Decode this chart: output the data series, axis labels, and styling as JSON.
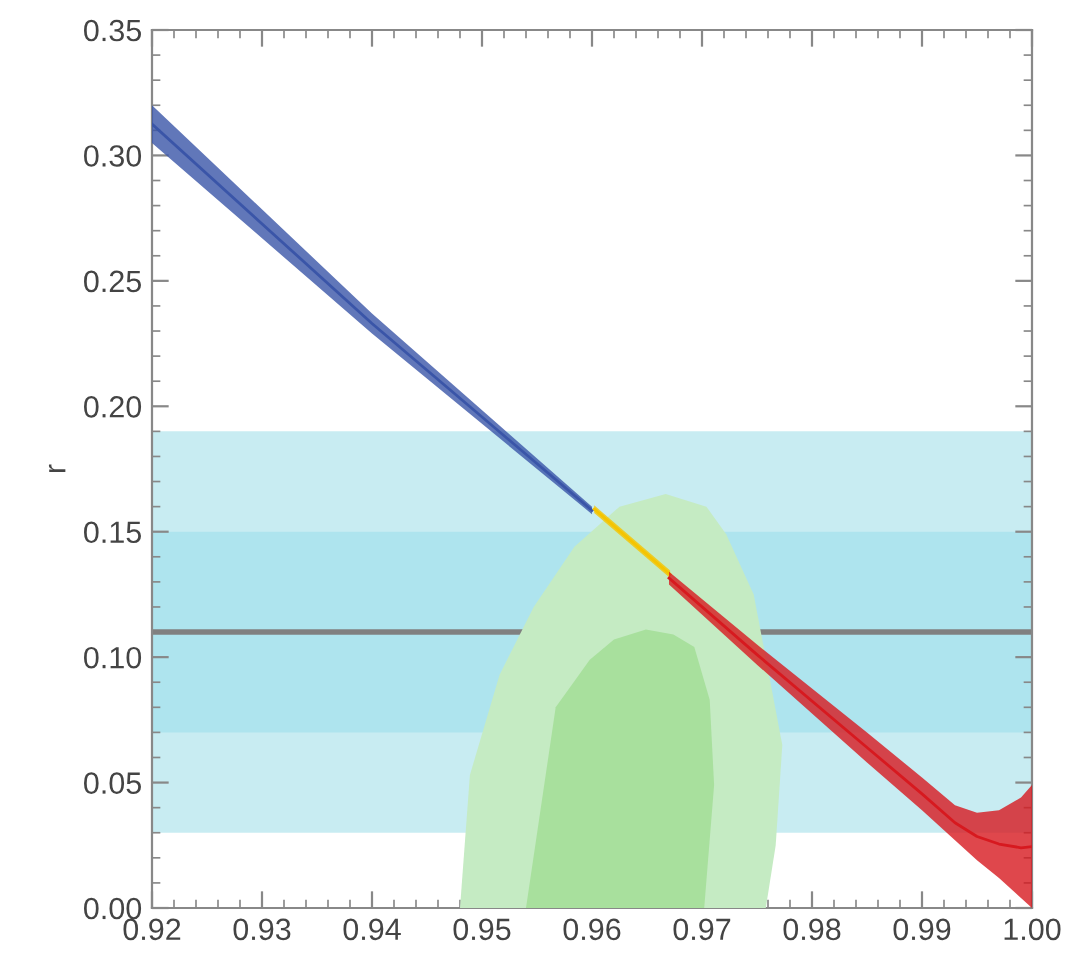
{
  "chart_data": {
    "type": "area",
    "ylabel": "r",
    "xlim": [
      0.92,
      1.0
    ],
    "xticks": [
      0.92,
      0.93,
      0.94,
      0.95,
      0.96,
      0.97,
      0.98,
      0.99,
      {
        "value": 1.0,
        "label": "1.00"
      }
    ],
    "ylim": [
      0,
      0.35
    ],
    "yticks": [
      {
        "value": 0,
        "label": "0.00"
      },
      0.05,
      {
        "value": 0.1,
        "label": "0.10"
      },
      0.15,
      {
        "value": 0.2,
        "label": "0.20"
      },
      0.25,
      {
        "value": 0.3,
        "label": "0.30"
      },
      0.35
    ],
    "grid": false,
    "bands": [
      {
        "axis": "y",
        "from": 0.03,
        "to": 0.19,
        "color": "#c8ecf2"
      },
      {
        "axis": "y",
        "from": 0.07,
        "to": 0.15,
        "color": "#aee4ee"
      }
    ],
    "ref_lines": [
      {
        "axis": "y",
        "value": 0.11,
        "color": "#808080",
        "line_style": "solid"
      }
    ],
    "series": [
      {
        "color": "#c5ebc3",
        "x": [
          0.948,
          0.9489,
          0.9516,
          0.9547,
          0.9584,
          0.9625,
          0.9667,
          0.9704,
          0.9722,
          0.9747,
          0.9767,
          0.9773,
          0.9767,
          0.9758
        ],
        "values": [
          0,
          0.053,
          0.093,
          0.12,
          0.144,
          0.16,
          0.165,
          0.16,
          0.149,
          0.125,
          null,
          0.065,
          0.025,
          0
        ]
      },
      {
        "color": "#a8e09d",
        "x": [
          0.954,
          0.9567,
          0.9598,
          0.962,
          0.9649,
          0.9674,
          0.9693,
          0.9707,
          0.9711,
          0.9702
        ],
        "values": [
          0,
          0.08,
          0.099,
          0.107,
          0.111,
          0.109,
          0.104,
          0.083,
          0.049,
          0
        ]
      },
      {
        "type": "line",
        "color": "#3a55a8",
        "x": [
          0.92,
          0.94,
          0.96
        ],
        "values": [
          0.3125,
          0.233,
          0.1585
        ],
        "lower": [
          0.305,
          0.229,
          0.157
        ],
        "upper": [
          0.32,
          0.237,
          0.16
        ]
      },
      {
        "type": "line",
        "color": "#f5c400",
        "x": [
          0.9602,
          0.9671
        ],
        "values": [
          0.159,
          0.133
        ],
        "lower": [
          0.1575,
          0.1315
        ],
        "upper": [
          0.1605,
          0.1345
        ]
      },
      {
        "type": "line",
        "color": "#d7191f",
        "x": [
          0.967,
          0.975,
          0.985,
          0.99,
          0.993,
          0.995,
          0.997,
          0.999,
          1.0
        ],
        "values": [
          0.1315,
          0.101,
          0.064,
          0.0455,
          0.034,
          0.0285,
          0.0255,
          0.024,
          0.0245
        ],
        "lower": [
          0.129,
          0.097,
          0.058,
          0.039,
          0.027,
          0.019,
          0.012,
          0.004,
          0.0
        ],
        "upper": [
          0.134,
          0.105,
          0.07,
          0.052,
          0.041,
          0.038,
          0.039,
          0.044,
          0.049
        ]
      }
    ]
  }
}
